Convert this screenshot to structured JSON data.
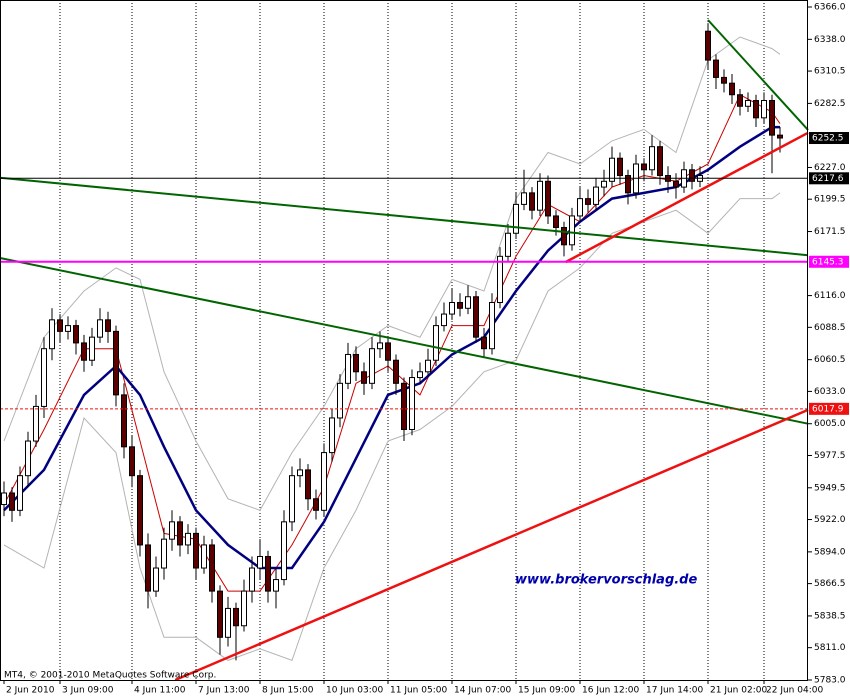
{
  "chart_data": {
    "type": "candlestick",
    "copyright": "MT4, © 2001-2010 MetaQuotes Software Corp.",
    "watermark": "www.brokervorschlag.de",
    "ylim": [
      5783,
      6366
    ],
    "yticks": [
      {
        "value": 6366,
        "label": "6366.0"
      },
      {
        "value": 6338,
        "label": "6338.0"
      },
      6310.5,
      6282.5,
      {
        "value": 6227,
        "label": "6227.0"
      },
      6199.5,
      6171.5,
      {
        "value": 6116,
        "label": "6116.0"
      },
      6088.5,
      6060.5,
      {
        "value": 6033,
        "label": "6033.0"
      },
      {
        "value": 6005,
        "label": "6005.0"
      },
      5977.5,
      5949.5,
      {
        "value": 5922,
        "label": "5922.0"
      },
      {
        "value": 5894,
        "label": "5894.0"
      },
      5866.5,
      5838.5,
      {
        "value": 5811,
        "label": "5811.0"
      },
      {
        "value": 5783,
        "label": "5783.0"
      }
    ],
    "xticks": [
      {
        "value": 0,
        "label": "2 Jun 2010"
      },
      {
        "value": 7,
        "label": "3 Jun 09:00"
      },
      {
        "value": 16,
        "label": "4 Jun 11:00"
      },
      {
        "value": 24,
        "label": "7 Jun 13:00"
      },
      {
        "value": 32,
        "label": "8 Jun 15:00"
      },
      {
        "value": 40,
        "label": "10 Jun 03:00"
      },
      {
        "value": 48,
        "label": "11 Jun 05:00"
      },
      {
        "value": 56,
        "label": "14 Jun 07:00"
      },
      {
        "value": 64,
        "label": "15 Jun 09:00"
      },
      {
        "value": 72,
        "label": "16 Jun 12:00"
      },
      {
        "value": 80,
        "label": "17 Jun 14:00"
      },
      {
        "value": 88,
        "label": "21 Jun 02:00"
      },
      {
        "value": 95,
        "label": "22 Jun 04:00"
      }
    ],
    "grid": true,
    "up_color": "#ffffff",
    "down_color": "#5a0000",
    "wick_color": "#000000",
    "open": [
      5935,
      5945,
      5930,
      5960,
      5990,
      6020,
      6070,
      6095,
      6085,
      6090,
      6075,
      6060,
      6080,
      6095,
      6085,
      6030,
      5985,
      5960,
      5900,
      5860,
      5880,
      5905,
      5920,
      5900,
      5910,
      5880,
      5900,
      5860,
      5820,
      5845,
      5830,
      5860,
      5880,
      5890,
      5860,
      5870,
      5920,
      5960,
      5965,
      5940,
      5930,
      5980,
      6010,
      6040,
      6065,
      6050,
      6040,
      6070,
      6075,
      6060,
      6040,
      6000,
      6045,
      6050,
      6060,
      6090,
      6100,
      6110,
      6105,
      6115,
      6080,
      6070,
      6110,
      6150,
      6170,
      6195,
      6205,
      6190,
      6215,
      6185,
      6175,
      6160,
      6185,
      6200,
      6195,
      6210,
      6215,
      6235,
      6220,
      6205,
      6230,
      6225,
      6245,
      6220,
      6215,
      6210,
      6225,
      6215,
      6345,
      6320,
      6305,
      6300,
      6290,
      6280,
      6285,
      6270,
      6285,
      6255
    ],
    "high": [
      5955,
      5950,
      5968,
      5998,
      6030,
      6080,
      6105,
      6100,
      6098,
      6095,
      6082,
      6088,
      6105,
      6102,
      6090,
      6040,
      5995,
      5965,
      5910,
      5890,
      5915,
      5930,
      5925,
      5918,
      5915,
      5908,
      5905,
      5865,
      5855,
      5850,
      5870,
      5890,
      5905,
      5895,
      5880,
      5930,
      5968,
      5975,
      5970,
      5948,
      5988,
      6018,
      6048,
      6075,
      6072,
      6058,
      6080,
      6085,
      6080,
      6065,
      6045,
      6052,
      6058,
      6070,
      6098,
      6110,
      6122,
      6118,
      6125,
      6120,
      6088,
      6118,
      6158,
      6178,
      6205,
      6225,
      6210,
      6222,
      6220,
      6190,
      6180,
      6192,
      6210,
      6208,
      6218,
      6225,
      6245,
      6240,
      6225,
      6238,
      6235,
      6255,
      6250,
      6228,
      6222,
      6232,
      6230,
      6228,
      6352,
      6325,
      6312,
      6308,
      6295,
      6292,
      6290,
      6292,
      6290,
      6262
    ],
    "low": [
      5925,
      5920,
      5925,
      5950,
      5985,
      6010,
      6060,
      6075,
      6078,
      6065,
      6050,
      6055,
      6075,
      6075,
      6020,
      5975,
      5950,
      5890,
      5845,
      5855,
      5870,
      5895,
      5890,
      5892,
      5870,
      5875,
      5850,
      5805,
      5812,
      5800,
      5825,
      5850,
      5870,
      5850,
      5845,
      5865,
      5912,
      5950,
      5930,
      5922,
      5925,
      5972,
      6002,
      6035,
      6042,
      6030,
      6035,
      6062,
      6050,
      6030,
      5990,
      5995,
      6040,
      6045,
      6055,
      6085,
      6095,
      6098,
      6100,
      6075,
      6062,
      6065,
      6105,
      6145,
      6165,
      6190,
      6182,
      6185,
      6178,
      6168,
      6150,
      6155,
      6180,
      6188,
      6190,
      6202,
      6210,
      6212,
      6195,
      6200,
      6215,
      6220,
      6212,
      6205,
      6200,
      6205,
      6208,
      6210,
      6312,
      6295,
      6292,
      6282,
      6272,
      6275,
      6262,
      6265,
      6222,
      6240
    ],
    "close": [
      5945,
      5930,
      5960,
      5990,
      6020,
      6070,
      6095,
      6085,
      6090,
      6075,
      6060,
      6080,
      6095,
      6085,
      6030,
      5985,
      5960,
      5900,
      5860,
      5880,
      5905,
      5920,
      5900,
      5910,
      5880,
      5900,
      5860,
      5820,
      5845,
      5830,
      5860,
      5880,
      5890,
      5860,
      5870,
      5920,
      5960,
      5965,
      5940,
      5930,
      5980,
      6010,
      6040,
      6065,
      6050,
      6040,
      6070,
      6075,
      6060,
      6040,
      6000,
      6045,
      6050,
      6060,
      6090,
      6100,
      6110,
      6105,
      6115,
      6080,
      6070,
      6110,
      6150,
      6170,
      6195,
      6205,
      6190,
      6215,
      6185,
      6175,
      6160,
      6185,
      6200,
      6195,
      6210,
      6215,
      6235,
      6220,
      6205,
      6230,
      6225,
      6245,
      6220,
      6215,
      6210,
      6225,
      6215,
      6220,
      6320,
      6305,
      6300,
      6290,
      6280,
      6285,
      6270,
      6285,
      6255,
      6252.5
    ],
    "indicators": [
      {
        "color": "#b4b4b4",
        "width": 1,
        "x": [
          0,
          5,
          10,
          14,
          17,
          20,
          24,
          28,
          32,
          36,
          40,
          44,
          48,
          52,
          56,
          60,
          64,
          68,
          72,
          76,
          80,
          84,
          88,
          92,
          96,
          97
        ],
        "values": [
          5990,
          6080,
          6120,
          6140,
          6130,
          6050,
          5990,
          5940,
          5930,
          5980,
          6020,
          6070,
          6090,
          6080,
          6130,
          6120,
          6200,
          6240,
          6230,
          6250,
          6260,
          6240,
          6320,
          6340,
          6330,
          6325
        ]
      },
      {
        "color": "#b4b4b4",
        "width": 1,
        "x": [
          0,
          5,
          10,
          14,
          17,
          20,
          24,
          28,
          32,
          36,
          40,
          44,
          48,
          52,
          56,
          60,
          64,
          68,
          72,
          76,
          80,
          84,
          88,
          92,
          96,
          97
        ],
        "values": [
          5900,
          5880,
          6010,
          5980,
          5880,
          5820,
          5820,
          5800,
          5810,
          5800,
          5880,
          5930,
          5990,
          6000,
          6020,
          6050,
          6060,
          6120,
          6140,
          6170,
          6180,
          6190,
          6170,
          6200,
          6200,
          6205
        ]
      },
      {
        "color": "#cc0000",
        "width": 1,
        "x": [
          0,
          5,
          10,
          14,
          17,
          20,
          24,
          28,
          32,
          36,
          40,
          44,
          48,
          52,
          56,
          60,
          64,
          68,
          72,
          76,
          80,
          84,
          88,
          92,
          96,
          97
        ],
        "values": [
          5935,
          6000,
          6070,
          6070,
          5990,
          5910,
          5905,
          5860,
          5860,
          5900,
          5950,
          6040,
          6055,
          6030,
          6090,
          6090,
          6150,
          6195,
          6180,
          6210,
          6220,
          6215,
          6230,
          6290,
          6275,
          6265
        ]
      },
      {
        "color": "#000080",
        "width": 2.5,
        "x": [
          0,
          5,
          10,
          14,
          17,
          20,
          24,
          28,
          32,
          36,
          40,
          44,
          48,
          52,
          56,
          60,
          64,
          68,
          72,
          76,
          80,
          84,
          88,
          92,
          96,
          97
        ],
        "values": [
          5930,
          5965,
          6030,
          6055,
          6030,
          5985,
          5930,
          5900,
          5880,
          5880,
          5920,
          5975,
          6030,
          6040,
          6065,
          6080,
          6120,
          6155,
          6180,
          6200,
          6205,
          6210,
          6225,
          6245,
          6262,
          6262
        ]
      }
    ],
    "trendlines": [
      {
        "color": "#006400",
        "width": 2,
        "x": [
          -0.5,
          100.5
        ],
        "values": [
          6218,
          6151
        ]
      },
      {
        "color": "#006400",
        "width": 2,
        "x": [
          -0.5,
          100.5
        ],
        "values": [
          6148.6,
          6005
        ]
      },
      {
        "color": "#006400",
        "width": 2,
        "x": [
          88,
          100.5
        ],
        "values": [
          6354.7,
          6259.5
        ]
      },
      {
        "color": "#ee1111",
        "width": 2.5,
        "x": [
          21.4,
          100.5
        ],
        "values": [
          5783,
          6017
        ]
      },
      {
        "color": "#ee1111",
        "width": 2.5,
        "x": [
          70.2,
          100.5
        ],
        "values": [
          6145,
          6257
        ]
      }
    ],
    "levels": [
      {
        "value": 6252.5,
        "line": false,
        "color": "#000000",
        "text_color": "#ffffff",
        "width": 1,
        "dash": false
      },
      {
        "value": 6217.6,
        "line": true,
        "color": "#000000",
        "text_color": "#ffffff",
        "width": 1,
        "dash": false
      },
      {
        "value": 6145.3,
        "line": true,
        "color": "#ff00ff",
        "text_color": "#ffffff",
        "width": 2,
        "dash": false
      },
      {
        "value": 6017.9,
        "line": true,
        "color": "#ee1111",
        "text_color": "#ffffff",
        "width": 1,
        "dash": true
      }
    ]
  }
}
